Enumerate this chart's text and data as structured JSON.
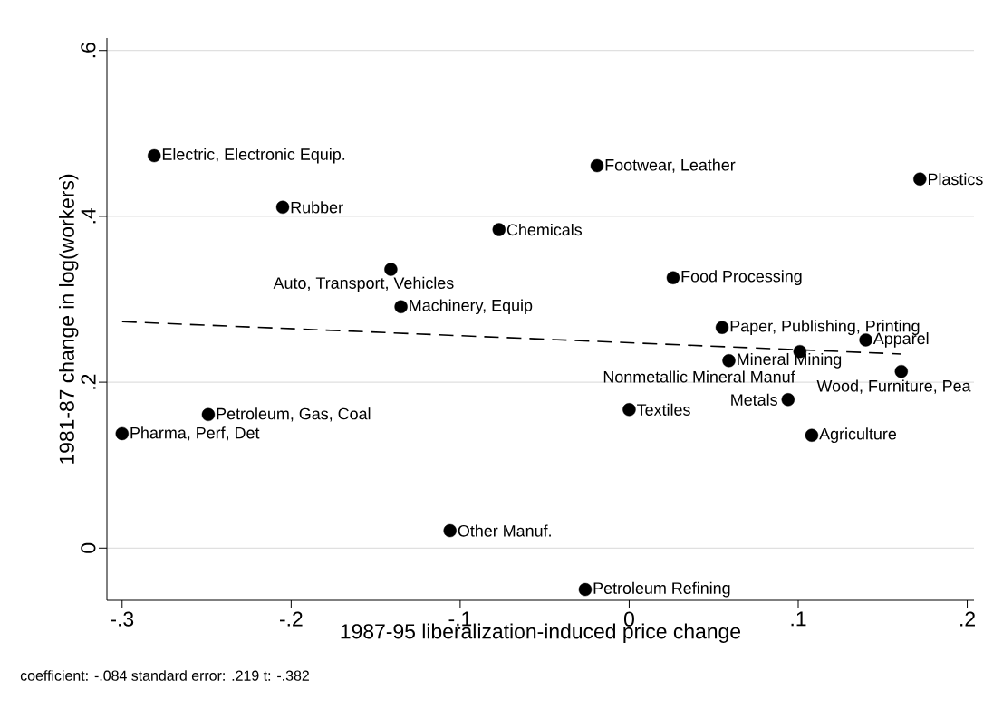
{
  "chart_data": {
    "type": "scatter",
    "xlabel": "1987-95 liberalization-induced price change",
    "ylabel": "1981-87 change in log(workers)",
    "xlim": [
      -0.309,
      0.204
    ],
    "ylim": [
      -0.063,
      0.615
    ],
    "xticks": [
      {
        "value": -0.3,
        "label": "-.3"
      },
      {
        "value": -0.2,
        "label": "-.2"
      },
      {
        "value": -0.1,
        "label": "-.1"
      },
      0,
      {
        "value": 0.1,
        "label": ".1"
      },
      {
        "value": 0.2,
        "label": ".2"
      }
    ],
    "yticks": [
      0,
      {
        "value": 0.2,
        "label": ".2"
      },
      {
        "value": 0.4,
        "label": ".4"
      },
      {
        "value": 0.6,
        "label": ".6"
      }
    ],
    "grid": "y",
    "series": [
      {
        "marker": "circle",
        "color": "#000000",
        "x": [
          -0.281,
          -0.205,
          -0.141,
          -0.135,
          -0.077,
          -0.019,
          0.172,
          0.026,
          0.055,
          0.101,
          0.14,
          0.059,
          0.161,
          0.094,
          0.0,
          0.108,
          -0.249,
          -0.3,
          -0.106,
          -0.026
        ],
        "values": [
          0.473,
          0.411,
          0.336,
          0.291,
          0.384,
          0.461,
          0.445,
          0.326,
          0.266,
          0.237,
          0.251,
          0.226,
          0.213,
          0.179,
          0.167,
          0.136,
          0.161,
          0.138,
          0.021,
          -0.05
        ]
      },
      {
        "type": "line",
        "marker": "none",
        "color": "#000000",
        "line_style": "dashed",
        "x": [
          -0.3,
          0.161
        ],
        "values": [
          0.273,
          0.234
        ]
      }
    ],
    "annotations": [
      {
        "text": "Electric, Electronic Equip.",
        "x": -0.281,
        "y": 0.473
      },
      {
        "text": "Rubber",
        "x": -0.205,
        "y": 0.411
      },
      {
        "text": "Auto, Transport, Vehicles",
        "x": -0.141,
        "y": 0.336
      },
      {
        "text": "Machinery, Equip",
        "x": -0.135,
        "y": 0.291
      },
      {
        "text": "Chemicals",
        "x": -0.077,
        "y": 0.384
      },
      {
        "text": "Footwear, Leather",
        "x": -0.019,
        "y": 0.461
      },
      {
        "text": "Plastics",
        "x": 0.172,
        "y": 0.445
      },
      {
        "text": "Food Processing",
        "x": 0.026,
        "y": 0.326
      },
      {
        "text": "Paper, Publishing, Printing",
        "x": 0.055,
        "y": 0.266
      },
      {
        "text": "Nonmetallic Mineral Manuf",
        "x": 0.101,
        "y": 0.237
      },
      {
        "text": "Apparel",
        "x": 0.14,
        "y": 0.251
      },
      {
        "text": "Mineral Mining",
        "x": 0.059,
        "y": 0.226
      },
      {
        "text": "Wood, Furniture, Pea",
        "x": 0.161,
        "y": 0.213
      },
      {
        "text": "Metals",
        "x": 0.094,
        "y": 0.179
      },
      {
        "text": "Textiles",
        "x": 0.0,
        "y": 0.167
      },
      {
        "text": "Agriculture",
        "x": 0.108,
        "y": 0.136
      },
      {
        "text": "Petroleum, Gas, Coal",
        "x": -0.249,
        "y": 0.161
      },
      {
        "text": "Pharma, Perf, Det",
        "x": -0.3,
        "y": 0.138
      },
      {
        "text": "Other Manuf.",
        "x": -0.106,
        "y": 0.021
      },
      {
        "text": "Petroleum Refining",
        "x": -0.026,
        "y": -0.05
      },
      "coefficient: -.084   standard error: .219   t: -.382"
    ]
  }
}
